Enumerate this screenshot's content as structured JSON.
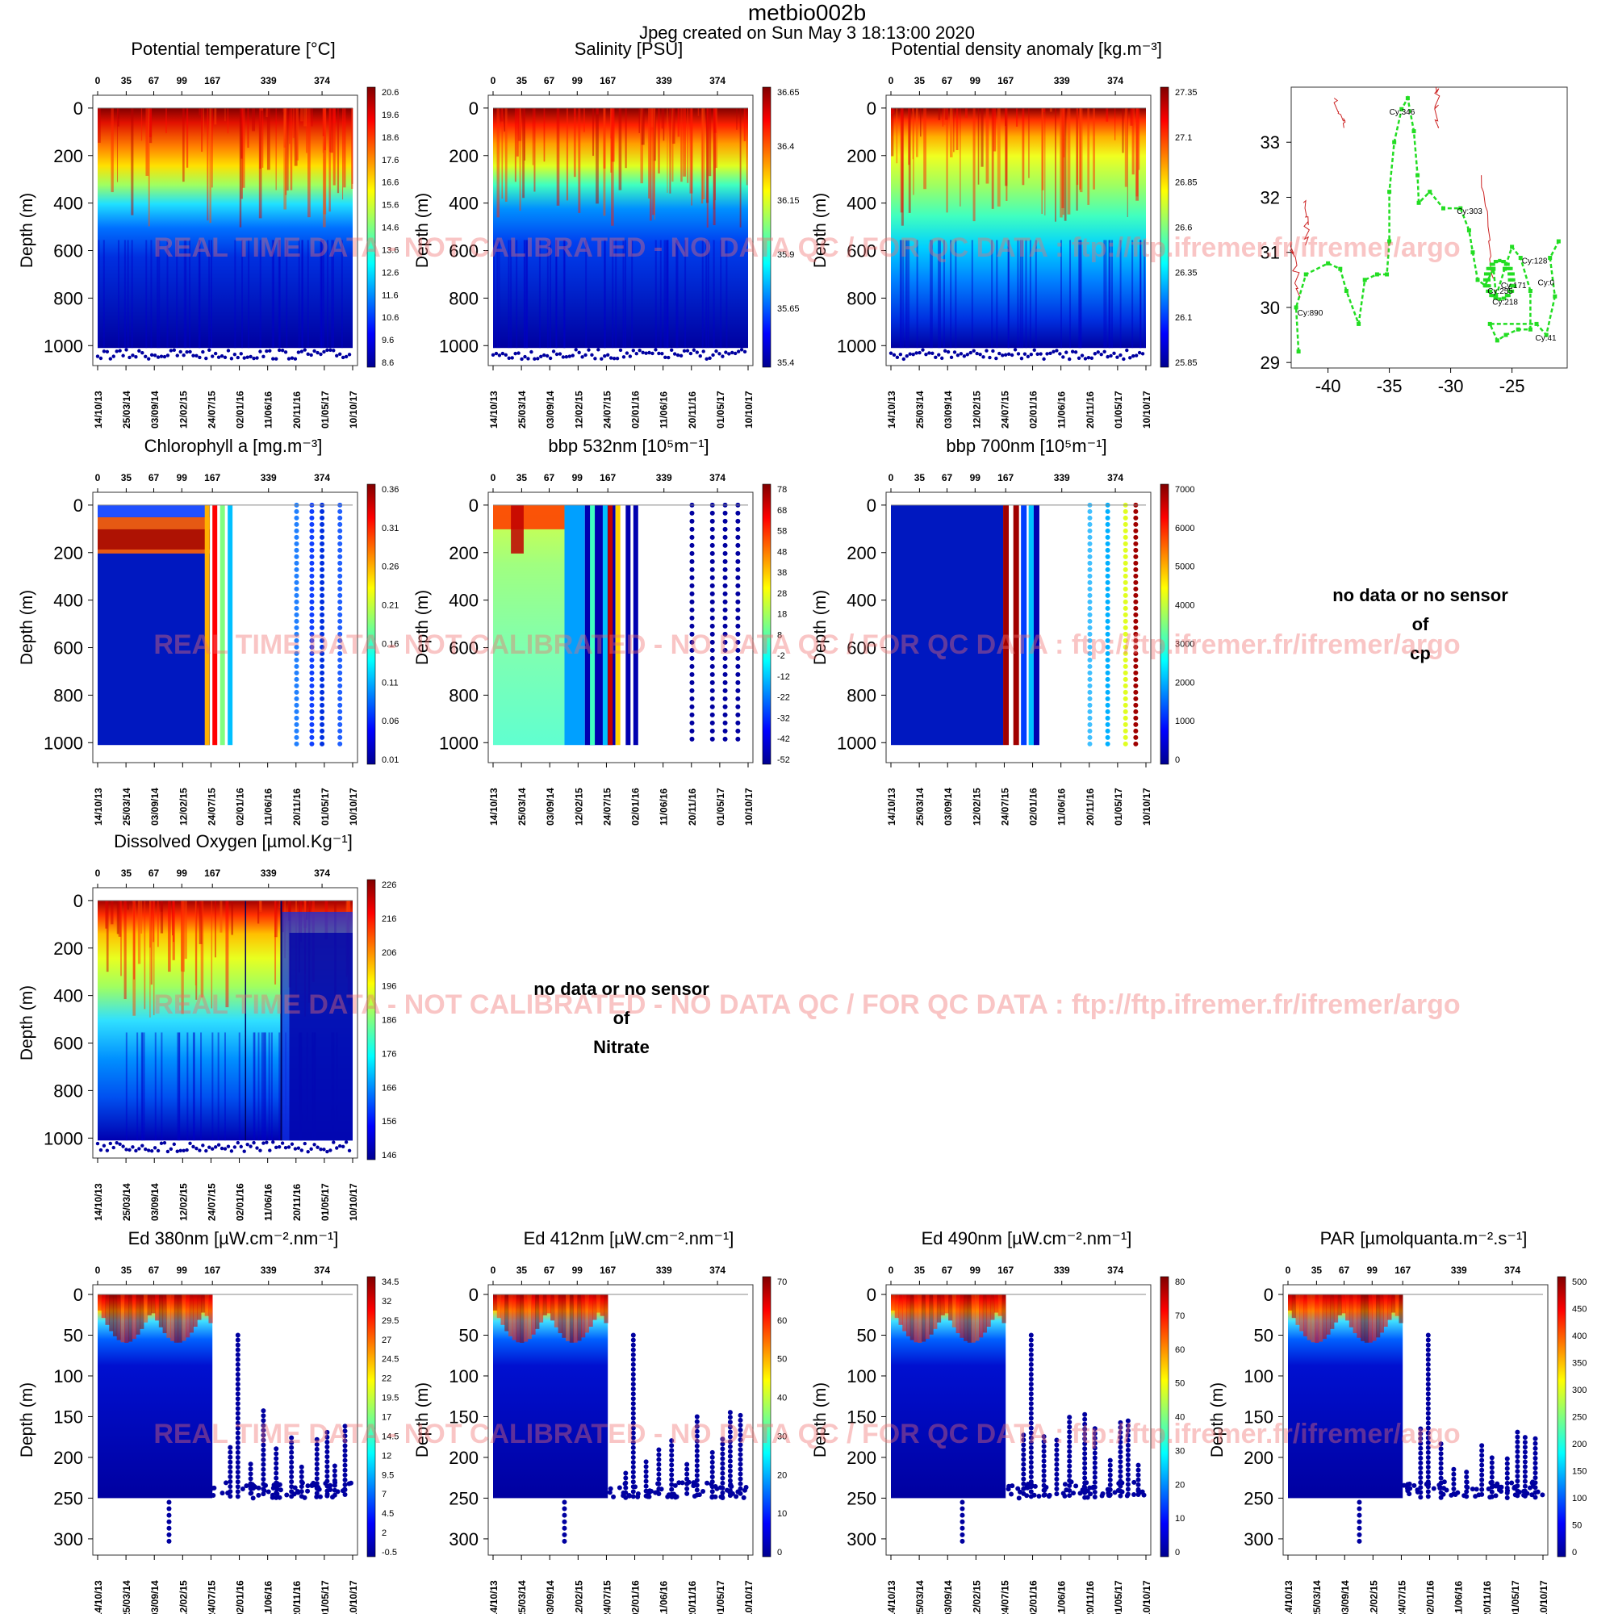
{
  "header": {
    "title": "metbio002b",
    "subtitle": "Jpeg created on  Sun May  3 18:13:00 2020"
  },
  "watermark": "REAL TIME DATA - NOT CALIBRATED - NO DATA QC   /  FOR QC DATA : ftp://ftp.ifremer.fr/ifremer/argo",
  "no_data": {
    "cp": [
      "no data or no sensor",
      "of",
      "cp"
    ],
    "nitrate": [
      "no data or no sensor",
      "of",
      "Nitrate"
    ]
  },
  "shared_axes": {
    "top_cycle_ticks": [
      "0",
      "35",
      "67",
      "99",
      "167",
      "339",
      "374"
    ],
    "date_ticks": [
      "14/10/13",
      "25/03/14",
      "03/09/14",
      "12/02/15",
      "24/07/15",
      "02/01/16",
      "11/06/16",
      "20/11/16",
      "01/05/17",
      "10/10/17"
    ],
    "ylabel": "Depth (m)"
  },
  "colors": {
    "jet_low": "#00008f",
    "jet_mid": "#80ff80",
    "jet_high": "#800000",
    "trajectory": "#22dd22",
    "contour": "#cc2222"
  },
  "chart_data": [
    {
      "id": "temp",
      "type": "heatmap",
      "title": "Potential temperature [°C]",
      "ylabel": "Depth (m)",
      "y_ticks": [
        0,
        200,
        400,
        600,
        800,
        1000
      ],
      "ylim": [
        1050,
        -20
      ],
      "colorbar": [
        "20.6",
        "19.6",
        "18.6",
        "17.6",
        "16.6",
        "15.6",
        "14.6",
        "13.6",
        "12.6",
        "11.6",
        "10.6",
        "9.6",
        "8.6"
      ],
      "pattern": "gradient"
    },
    {
      "id": "sal",
      "type": "heatmap",
      "title": "Salinity [PSU]",
      "ylabel": "Depth (m)",
      "y_ticks": [
        0,
        200,
        400,
        600,
        800,
        1000
      ],
      "ylim": [
        1050,
        -20
      ],
      "colorbar": [
        "36.65",
        "36.4",
        "36.15",
        "35.9",
        "35.65",
        "35.4"
      ],
      "pattern": "gradient"
    },
    {
      "id": "dens",
      "type": "heatmap",
      "title": "Potential density anomaly [kg.m⁻³]",
      "ylabel": "Depth (m)",
      "y_ticks": [
        0,
        200,
        400,
        600,
        800,
        1000
      ],
      "ylim": [
        1050,
        -20
      ],
      "colorbar": [
        "27.35",
        "27.1",
        "26.85",
        "26.6",
        "26.35",
        "26.1",
        "25.85"
      ],
      "pattern": "gradient"
    },
    {
      "id": "traj",
      "type": "scatter",
      "title": "",
      "x_ticks": [
        -40,
        -35,
        -30,
        -25
      ],
      "y_ticks": [
        29,
        30,
        31,
        32,
        33
      ],
      "xlim": [
        -43,
        -20.5
      ],
      "ylim": [
        28.9,
        34
      ],
      "labels": [
        {
          "text": "Cy:346",
          "lon": -35,
          "lat": 33.5
        },
        {
          "text": "Cy:303",
          "lon": -29.5,
          "lat": 31.7
        },
        {
          "text": "Cy:128",
          "lon": -24.2,
          "lat": 30.8
        },
        {
          "text": "Cy:0",
          "lon": -22.9,
          "lat": 30.4
        },
        {
          "text": "Cy:255",
          "lon": -27,
          "lat": 30.25
        },
        {
          "text": "Cy:171",
          "lon": -25.9,
          "lat": 30.35
        },
        {
          "text": "Cy:218",
          "lon": -26.6,
          "lat": 30.05
        },
        {
          "text": "Cy:890",
          "lon": -42.5,
          "lat": 29.85
        },
        {
          "text": "Cy:41",
          "lon": -23.1,
          "lat": 29.4
        }
      ]
    },
    {
      "id": "chla",
      "type": "heatmap",
      "title": "Chlorophyll a [mg.m⁻³]",
      "ylabel": "Depth (m)",
      "y_ticks": [
        0,
        200,
        400,
        600,
        800,
        1000
      ],
      "ylim": [
        1050,
        -20
      ],
      "colorbar": [
        "0.36",
        "0.31",
        "0.26",
        "0.21",
        "0.16",
        "0.11",
        "0.06",
        "0.01"
      ],
      "pattern": "chla"
    },
    {
      "id": "bbp532",
      "type": "heatmap",
      "title": "bbp 532nm [10⁵m⁻¹]",
      "ylabel": "Depth (m)",
      "y_ticks": [
        0,
        200,
        400,
        600,
        800,
        1000
      ],
      "ylim": [
        1050,
        -20
      ],
      "colorbar": [
        "78",
        "68",
        "58",
        "48",
        "38",
        "28",
        "18",
        "8",
        "-2",
        "-12",
        "-22",
        "-32",
        "-42",
        "-52"
      ],
      "pattern": "bbp532"
    },
    {
      "id": "bbp700",
      "type": "heatmap",
      "title": "bbp 700nm [10⁵m⁻¹]",
      "ylabel": "Depth (m)",
      "y_ticks": [
        0,
        200,
        400,
        600,
        800,
        1000
      ],
      "ylim": [
        1050,
        -20
      ],
      "colorbar": [
        "7000",
        "6000",
        "5000",
        "4000",
        "3000",
        "2000",
        "1000",
        "0"
      ],
      "pattern": "bbp700"
    },
    {
      "id": "oxy",
      "type": "heatmap",
      "title": "Dissolved Oxygen [µmol.Kg⁻¹]",
      "ylabel": "Depth (m)",
      "y_ticks": [
        0,
        200,
        400,
        600,
        800,
        1000
      ],
      "ylim": [
        1050,
        -20
      ],
      "colorbar": [
        "226",
        "216",
        "206",
        "196",
        "186",
        "176",
        "166",
        "156",
        "146"
      ],
      "pattern": "oxy"
    },
    {
      "id": "ed380",
      "type": "heatmap",
      "title": "Ed 380nm [µW.cm⁻².nm⁻¹]",
      "ylabel": "Depth (m)",
      "y_ticks": [
        0,
        50,
        100,
        150,
        200,
        250,
        300
      ],
      "ylim": [
        310,
        -2
      ],
      "colorbar": [
        "34.5",
        "32",
        "29.5",
        "27",
        "24.5",
        "22",
        "19.5",
        "17",
        "14.5",
        "12",
        "9.5",
        "7",
        "4.5",
        "2",
        "-0.5"
      ],
      "pattern": "light"
    },
    {
      "id": "ed412",
      "type": "heatmap",
      "title": "Ed 412nm [µW.cm⁻².nm⁻¹]",
      "ylabel": "Depth (m)",
      "y_ticks": [
        0,
        50,
        100,
        150,
        200,
        250,
        300
      ],
      "ylim": [
        310,
        -2
      ],
      "colorbar": [
        "70",
        "60",
        "50",
        "40",
        "30",
        "20",
        "10",
        "0"
      ],
      "pattern": "light"
    },
    {
      "id": "ed490",
      "type": "heatmap",
      "title": "Ed 490nm [µW.cm⁻².nm⁻¹]",
      "ylabel": "Depth (m)",
      "y_ticks": [
        0,
        50,
        100,
        150,
        200,
        250,
        300
      ],
      "ylim": [
        310,
        -2
      ],
      "colorbar": [
        "80",
        "70",
        "60",
        "50",
        "40",
        "30",
        "20",
        "10",
        "0"
      ],
      "pattern": "light"
    },
    {
      "id": "par",
      "type": "heatmap",
      "title": "PAR [µmolquanta.m⁻².s⁻¹]",
      "ylabel": "Depth (m)",
      "y_ticks": [
        0,
        50,
        100,
        150,
        200,
        250,
        300
      ],
      "ylim": [
        310,
        -2
      ],
      "colorbar": [
        "500",
        "450",
        "400",
        "350",
        "300",
        "250",
        "200",
        "150",
        "100",
        "50",
        "0"
      ],
      "pattern": "light"
    }
  ]
}
